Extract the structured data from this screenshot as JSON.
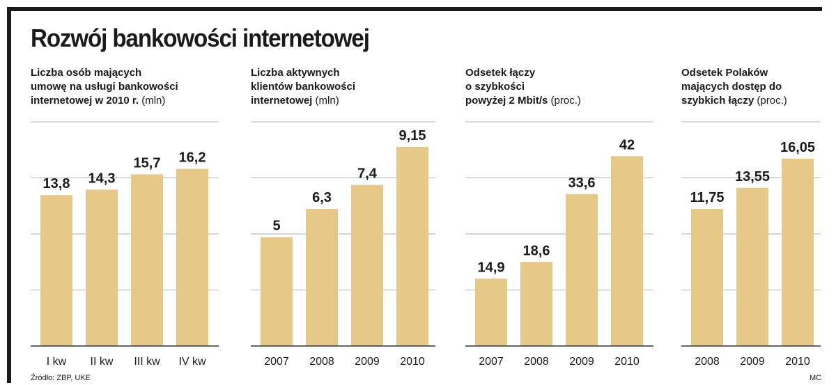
{
  "title": "Rozwój bankowości internetowej",
  "source": "Źródło: ZBP, UKE",
  "credit": "MC",
  "colors": {
    "bar": "#e6c887",
    "grid": "#b3b3b3",
    "axis": "#333333",
    "text": "#1a1a1a"
  },
  "chart_data": [
    {
      "type": "bar",
      "title_lines": [
        "Liczba osób mających",
        "umowę na usługi bankowości",
        "internetowej w 2010 r."
      ],
      "unit": "(mln)",
      "categories": [
        "I kw",
        "II kw",
        "III kw",
        "IV kw"
      ],
      "values": [
        13.8,
        14.3,
        15.7,
        16.2
      ],
      "value_labels": [
        "13,8",
        "14,3",
        "15,7",
        "16,2"
      ],
      "ylim": [
        0,
        20.5
      ]
    },
    {
      "type": "bar",
      "title_lines": [
        "Liczba aktywnych",
        "klientów bankowości",
        "internetowej"
      ],
      "unit": "(mln)",
      "categories": [
        "2007",
        "2008",
        "2009",
        "2010"
      ],
      "values": [
        5,
        6.3,
        7.4,
        9.15
      ],
      "value_labels": [
        "5",
        "6,3",
        "7,4",
        "9,15"
      ],
      "ylim": [
        0,
        10.3
      ]
    },
    {
      "type": "bar",
      "title_lines": [
        "Odsetek łączy",
        "o szybkości",
        "powyżej 2 Mbit/s"
      ],
      "unit": "(proc.)",
      "categories": [
        "2007",
        "2008",
        "2009",
        "2010"
      ],
      "values": [
        14.9,
        18.6,
        33.6,
        42
      ],
      "value_labels": [
        "14,9",
        "18,6",
        "33,6",
        "42"
      ],
      "ylim": [
        0,
        49.6
      ]
    },
    {
      "type": "bar",
      "title_lines": [
        "Odsetek Polaków",
        "mających dostęp do",
        "szybkich łączy"
      ],
      "unit": "(proc.)",
      "categories": [
        "2008",
        "2009",
        "2010"
      ],
      "values": [
        11.75,
        13.55,
        16.05
      ],
      "value_labels": [
        "11,75",
        "13,55",
        "16,05"
      ],
      "ylim": [
        0,
        19.2
      ]
    }
  ]
}
